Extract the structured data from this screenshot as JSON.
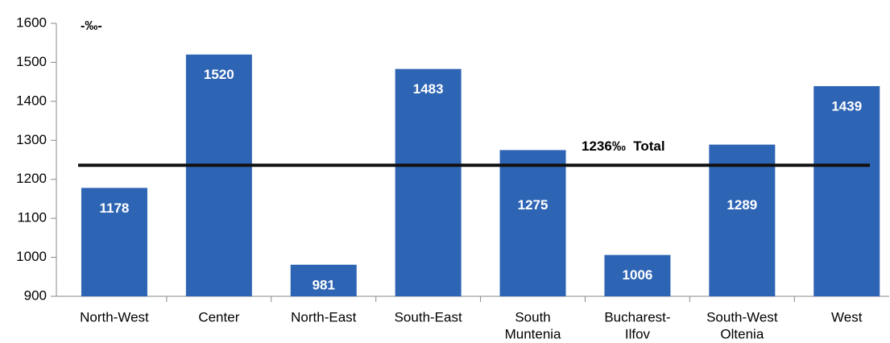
{
  "chart_data": {
    "type": "bar",
    "unit_label": "-‰-",
    "categories": [
      [
        "North-West"
      ],
      [
        "Center"
      ],
      [
        "North-East"
      ],
      [
        "South-East"
      ],
      [
        "South",
        "Muntenia"
      ],
      [
        "Bucharest-",
        "Ilfov"
      ],
      [
        "South-West",
        "Oltenia"
      ],
      [
        "West"
      ]
    ],
    "values": [
      1178,
      1520,
      981,
      1483,
      1275,
      1006,
      1289,
      1439
    ],
    "color": "#2e64b4",
    "ylim": [
      900,
      1600
    ],
    "yticks": [
      900,
      1000,
      1100,
      1200,
      1300,
      1400,
      1500,
      1600
    ],
    "reference_line": {
      "value": 1236,
      "label": "1236‰  Total"
    },
    "grid": false
  }
}
